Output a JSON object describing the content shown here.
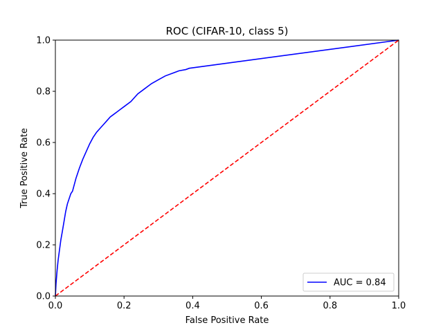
{
  "chart_data": {
    "type": "line",
    "title": "ROC (CIFAR-10, class 5)",
    "xlabel": "False Positive Rate",
    "ylabel": "True Positive Rate",
    "xlim": [
      0,
      1
    ],
    "ylim": [
      0,
      1
    ],
    "xticks": [
      "0.0",
      "0.2",
      "0.4",
      "0.6",
      "0.8",
      "1.0"
    ],
    "yticks": [
      "0.0",
      "0.2",
      "0.4",
      "0.6",
      "0.8",
      "1.0"
    ],
    "grid": false,
    "legend_position": "bottom-right",
    "series": [
      {
        "name": "AUC = 0.84",
        "color": "#0000ff",
        "style": "solid",
        "x": [
          0.0,
          0.002,
          0.005,
          0.008,
          0.012,
          0.016,
          0.02,
          0.025,
          0.03,
          0.035,
          0.04,
          0.045,
          0.05,
          0.06,
          0.07,
          0.08,
          0.09,
          0.1,
          0.11,
          0.12,
          0.13,
          0.14,
          0.15,
          0.16,
          0.17,
          0.18,
          0.19,
          0.2,
          0.22,
          0.24,
          0.26,
          0.28,
          0.3,
          0.32,
          0.34,
          0.36,
          0.38,
          0.39,
          1.0
        ],
        "y": [
          0.0,
          0.05,
          0.1,
          0.14,
          0.18,
          0.22,
          0.25,
          0.29,
          0.33,
          0.36,
          0.38,
          0.4,
          0.41,
          0.46,
          0.5,
          0.535,
          0.565,
          0.595,
          0.62,
          0.64,
          0.655,
          0.67,
          0.685,
          0.7,
          0.71,
          0.72,
          0.73,
          0.74,
          0.76,
          0.79,
          0.81,
          0.83,
          0.845,
          0.86,
          0.87,
          0.88,
          0.885,
          0.89,
          1.0
        ]
      },
      {
        "name": "",
        "color": "#ff0000",
        "style": "dashed",
        "x": [
          0,
          1
        ],
        "y": [
          0,
          1
        ]
      }
    ]
  }
}
